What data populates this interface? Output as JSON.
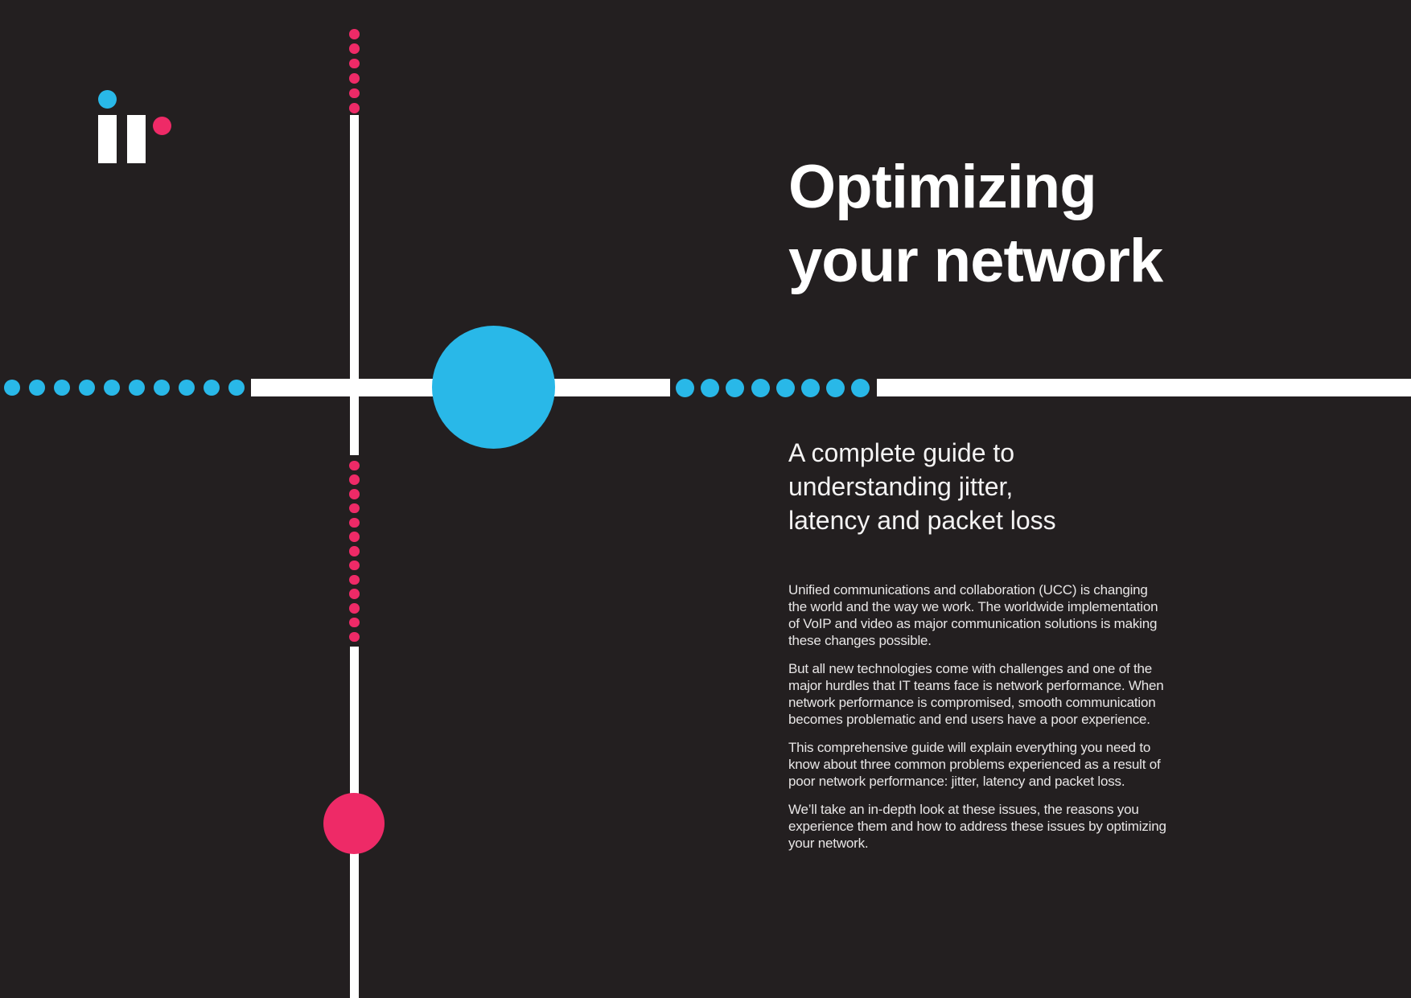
{
  "colors": {
    "background": "#231f20",
    "cyan": "#29b8e8",
    "pink": "#ee2a67",
    "line": "#ffffff"
  },
  "logo": {
    "name": "ir logo"
  },
  "hero": {
    "title_line1": "Optimizing",
    "title_line2": "your network",
    "subtitle_lines": [
      "A complete guide to",
      "understanding jitter,",
      "latency and packet loss"
    ]
  },
  "body": {
    "paragraphs": [
      "Unified communications and collaboration (UCC) is changing the world and the way we work. The worldwide implementation of VoIP and video as major communication solutions is making these changes possible.",
      "But all new technologies come with challenges and one of the major hurdles that IT teams face is network performance. When network performance is compromised, smooth communication becomes problematic and end users have a poor experience.",
      "This comprehensive guide will explain everything you need to know about three common problems experienced as a result of poor network performance: jitter, latency and packet loss.",
      "We’ll take an in-depth look at these issues, the reasons you experience them and how to address these issues by optimizing your network."
    ]
  }
}
